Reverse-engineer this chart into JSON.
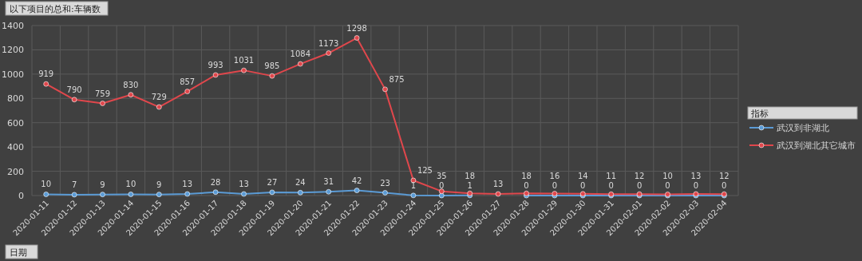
{
  "chart_data": {
    "type": "line",
    "title": "以下项目的总和:车辆数",
    "xlabel": "日期",
    "legend_title": "指标",
    "categories": [
      "2020-01-11",
      "2020-01-12",
      "2020-01-13",
      "2020-01-14",
      "2020-01-15",
      "2020-01-16",
      "2020-01-17",
      "2020-01-18",
      "2020-01-19",
      "2020-01-20",
      "2020-01-21",
      "2020-01-22",
      "2020-01-23",
      "2020-01-24",
      "2020-01-25",
      "2020-01-26",
      "2020-01-27",
      "2020-01-28",
      "2020-01-29",
      "2020-01-30",
      "2020-01-31",
      "2020-02-01",
      "2020-02-02",
      "2020-02-03",
      "2020-02-04"
    ],
    "series": [
      {
        "name": "武汉到非湖北",
        "color": "#5b9bd5",
        "values": [
          10,
          7,
          9,
          10,
          9,
          13,
          28,
          13,
          27,
          24,
          31,
          42,
          23,
          1,
          0,
          1,
          null,
          0,
          0,
          0,
          0,
          0,
          0,
          0,
          0
        ]
      },
      {
        "name": "武汉到湖北其它城市",
        "color": "#e0474c",
        "values": [
          919,
          790,
          759,
          830,
          729,
          857,
          993,
          1031,
          985,
          1084,
          1173,
          1298,
          875,
          125,
          35,
          18,
          13,
          18,
          16,
          14,
          11,
          12,
          10,
          13,
          12
        ]
      }
    ],
    "ylim": [
      0,
      1400
    ],
    "yticks": [
      0,
      200,
      400,
      600,
      800,
      1000,
      1200,
      1400
    ],
    "grid": true,
    "legend": "right",
    "marker": "circle",
    "line_style": "solid",
    "data_labels": true
  }
}
